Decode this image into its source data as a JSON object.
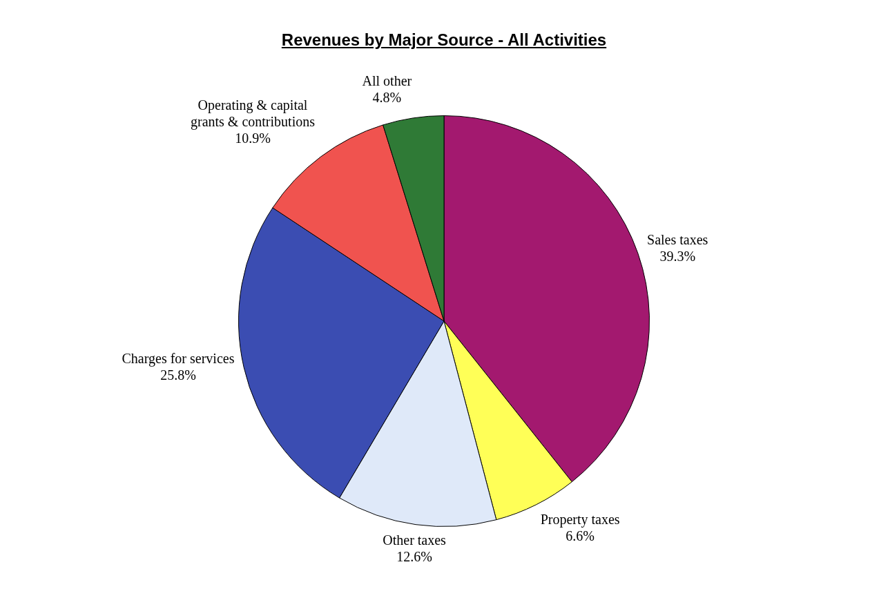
{
  "chart_data": {
    "type": "pie",
    "title": "Revenues by Major Source - All Activities",
    "categories": [
      "Sales taxes",
      "Property taxes",
      "Other taxes",
      "Charges for services",
      "Operating & capital grants & contributions",
      "All other"
    ],
    "values": [
      39.3,
      6.6,
      12.6,
      25.8,
      10.9,
      4.8
    ],
    "value_labels": [
      "39.3%",
      "6.6%",
      "12.6%",
      "25.8%",
      "10.9%",
      "4.8%"
    ],
    "colors": [
      "#a3196f",
      "#ffff57",
      "#dfe9f9",
      "#3b4db2",
      "#f0534f",
      "#2f7a36"
    ],
    "legend": false
  }
}
